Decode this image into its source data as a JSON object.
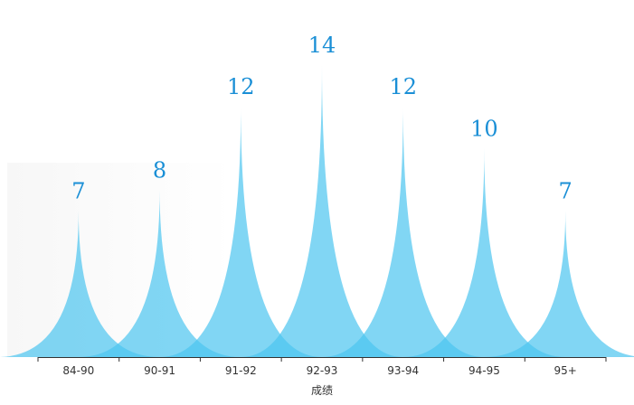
{
  "chart_data": {
    "type": "bar",
    "categories": [
      "84-90",
      "90-91",
      "91-92",
      "92-93",
      "93-94",
      "94-95",
      "95+"
    ],
    "values": [
      7,
      8,
      12,
      14,
      12,
      10,
      7
    ],
    "xlabel": "成绩",
    "ylabel": "",
    "ylim": [
      0,
      14
    ],
    "grid": false,
    "legend": "none",
    "bar_shape": "pictorial-peak",
    "colors": {
      "fill": "#4cc4f0",
      "fill_opacity": 0.7,
      "label": "#1a8fd6",
      "axis": "#333333"
    }
  }
}
